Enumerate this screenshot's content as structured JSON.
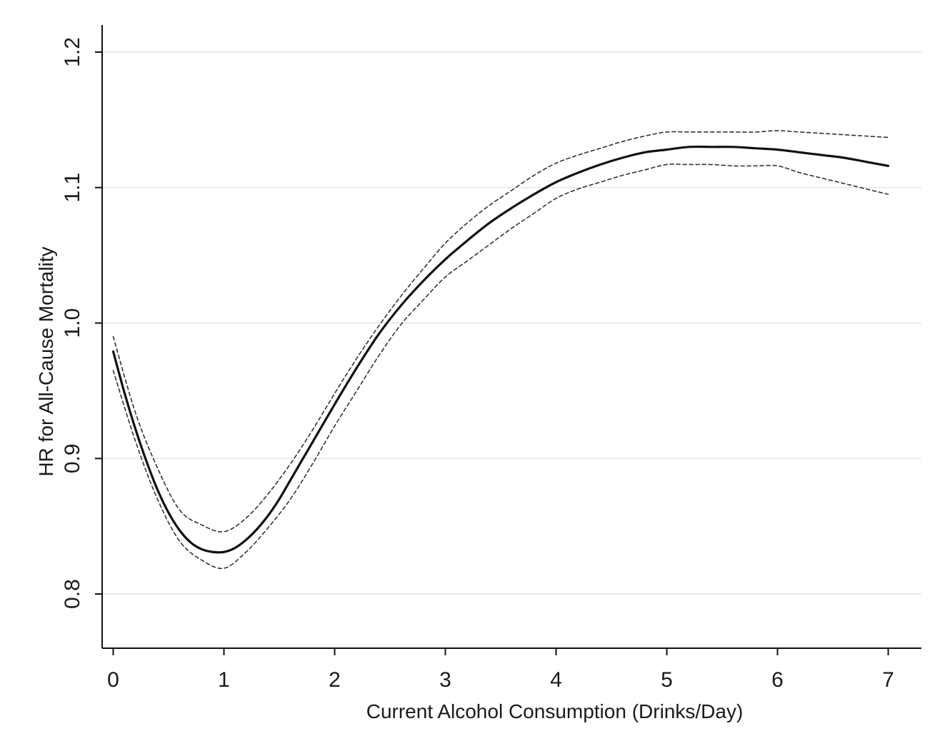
{
  "chart_data": {
    "type": "line",
    "title": "",
    "xlabel": "Current Alcohol Consumption (Drinks/Day)",
    "ylabel": "HR for All-Cause Mortality",
    "xlim": [
      -0.1,
      7.3
    ],
    "ylim": [
      0.76,
      1.22
    ],
    "x_ticks": [
      0,
      1,
      2,
      3,
      4,
      5,
      6,
      7
    ],
    "x_tick_labels": [
      "0",
      "1",
      "2",
      "3",
      "4",
      "5",
      "6",
      "7"
    ],
    "y_ticks": [
      0.8,
      0.9,
      1.0,
      1.1,
      1.2
    ],
    "y_tick_labels": [
      "0.8",
      "0.9",
      "1.0",
      "1.1",
      "1.2"
    ],
    "grid": "horizontal",
    "legend": "none",
    "colors": {
      "line": "#111111",
      "ci": "#333333",
      "grid": "#e6e6e6",
      "axis": "#111111"
    },
    "series": [
      {
        "role": "estimate",
        "style": "solid",
        "x": [
          0,
          0.1,
          0.2,
          0.3,
          0.4,
          0.5,
          0.6,
          0.7,
          0.8,
          0.9,
          1.0,
          1.1,
          1.2,
          1.3,
          1.4,
          1.5,
          1.6,
          1.8,
          2.0,
          2.2,
          2.4,
          2.6,
          2.8,
          3.0,
          3.2,
          3.4,
          3.6,
          3.8,
          4.0,
          4.2,
          4.4,
          4.6,
          4.8,
          5.0,
          5.2,
          5.4,
          5.6,
          5.8,
          6.0,
          6.2,
          6.4,
          6.6,
          6.8,
          7.0
        ],
        "y": [
          0.979,
          0.949,
          0.922,
          0.898,
          0.877,
          0.86,
          0.847,
          0.838,
          0.833,
          0.831,
          0.831,
          0.834,
          0.84,
          0.848,
          0.858,
          0.87,
          0.884,
          0.912,
          0.94,
          0.967,
          0.992,
          1.013,
          1.031,
          1.047,
          1.061,
          1.074,
          1.085,
          1.095,
          1.104,
          1.111,
          1.117,
          1.122,
          1.126,
          1.128,
          1.13,
          1.13,
          1.13,
          1.129,
          1.128,
          1.126,
          1.124,
          1.122,
          1.119,
          1.116
        ]
      },
      {
        "role": "upper-ci",
        "style": "dashed",
        "x": [
          0,
          0.2,
          0.4,
          0.6,
          0.8,
          1.0,
          1.2,
          1.4,
          1.6,
          1.8,
          2.0,
          2.2,
          2.4,
          2.6,
          2.8,
          3.0,
          3.2,
          3.4,
          3.6,
          3.8,
          4.0,
          4.2,
          4.4,
          4.6,
          4.8,
          5.0,
          5.2,
          5.4,
          5.6,
          5.8,
          6.0,
          6.2,
          6.4,
          6.6,
          6.8,
          7.0
        ],
        "y": [
          0.99,
          0.934,
          0.893,
          0.862,
          0.851,
          0.846,
          0.856,
          0.874,
          0.896,
          0.921,
          0.948,
          0.974,
          0.998,
          1.02,
          1.04,
          1.059,
          1.074,
          1.087,
          1.098,
          1.109,
          1.118,
          1.124,
          1.129,
          1.134,
          1.138,
          1.141,
          1.141,
          1.141,
          1.141,
          1.141,
          1.142,
          1.141,
          1.14,
          1.139,
          1.138,
          1.137
        ]
      },
      {
        "role": "lower-ci",
        "style": "dashed",
        "x": [
          0,
          0.2,
          0.4,
          0.6,
          0.8,
          1.0,
          1.2,
          1.4,
          1.6,
          1.8,
          2.0,
          2.2,
          2.4,
          2.6,
          2.8,
          3.0,
          3.2,
          3.4,
          3.6,
          3.8,
          4.0,
          4.2,
          4.4,
          4.6,
          4.8,
          5.0,
          5.2,
          5.4,
          5.6,
          5.8,
          6.0,
          6.2,
          6.4,
          6.6,
          6.8,
          7.0
        ],
        "y": [
          0.965,
          0.913,
          0.87,
          0.839,
          0.825,
          0.819,
          0.831,
          0.849,
          0.87,
          0.896,
          0.924,
          0.95,
          0.976,
          0.999,
          1.017,
          1.034,
          1.046,
          1.058,
          1.07,
          1.081,
          1.092,
          1.099,
          1.104,
          1.109,
          1.113,
          1.117,
          1.117,
          1.117,
          1.116,
          1.116,
          1.116,
          1.111,
          1.107,
          1.103,
          1.099,
          1.095
        ]
      }
    ]
  }
}
